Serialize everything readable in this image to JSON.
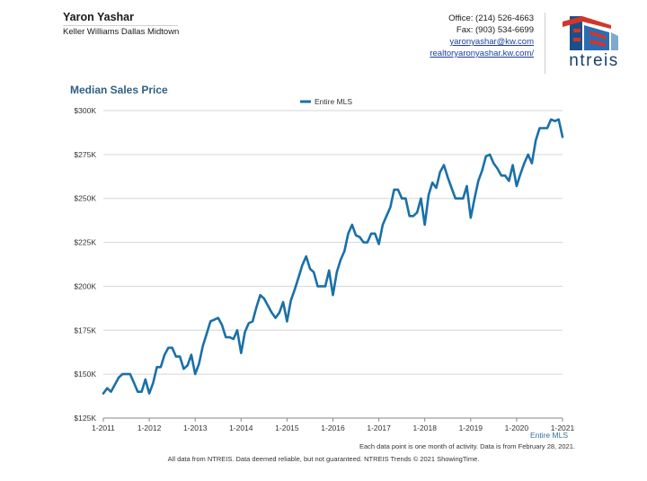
{
  "agent": {
    "name": "Yaron Yashar",
    "company": "Keller Williams Dallas Midtown"
  },
  "contact": {
    "office": "Office: (214) 526-4663",
    "fax": "Fax: (903) 534-6699",
    "email": "yaronyashar@kw.com",
    "website": "realtoryaronyashar.kw.com/"
  },
  "logo": {
    "text": "ntreis",
    "colors": {
      "red": "#d2362a",
      "blue": "#1b4f8a"
    }
  },
  "chart_title": "Median Sales Price",
  "chart_data": {
    "type": "line",
    "title": "Median Sales Price",
    "series": [
      {
        "name": "Entire MLS",
        "color": "#1a70a8",
        "start": "2011-01",
        "values": [
          139,
          142,
          140,
          144,
          148,
          150,
          150,
          150,
          145,
          140,
          140,
          147,
          139,
          145,
          154,
          154,
          161,
          165,
          165,
          160,
          160,
          153,
          155,
          161,
          150,
          156,
          166,
          173,
          180,
          181,
          182,
          178,
          171,
          171,
          170,
          175,
          162,
          174,
          179,
          180,
          188,
          195,
          193,
          189,
          185,
          182,
          185,
          191,
          180,
          192,
          198,
          205,
          212,
          217,
          210,
          208,
          200,
          200,
          200,
          209,
          195,
          208,
          215,
          220,
          230,
          235,
          229,
          228,
          225,
          225,
          230,
          230,
          224,
          235,
          240,
          245,
          255,
          255,
          250,
          250,
          240,
          240,
          242,
          250,
          235,
          252,
          259,
          256,
          265,
          269,
          262,
          256,
          250,
          250,
          250,
          257,
          239,
          250,
          260,
          266,
          274,
          275,
          270,
          267,
          263,
          263,
          260,
          269,
          257,
          264,
          270,
          275,
          270,
          283,
          290,
          290,
          290,
          295,
          294,
          295,
          285
        ]
      }
    ],
    "y_axis": {
      "min": 125,
      "max": 300,
      "ticks": [
        125,
        150,
        175,
        200,
        225,
        250,
        275,
        300
      ],
      "tick_labels": [
        "$125K",
        "$150K",
        "$175K",
        "$200K",
        "$225K",
        "$250K",
        "$275K",
        "$300K"
      ],
      "unit": "thousands of dollars"
    },
    "x_axis": {
      "tick_labels": [
        "1-2011",
        "1-2012",
        "1-2013",
        "1-2014",
        "1-2015",
        "1-2016",
        "1-2017",
        "1-2018",
        "1-2019",
        "1-2020",
        "1-2021"
      ],
      "label": "Entire MLS"
    },
    "grid": "horizontal",
    "legend": "top-center",
    "note": "Each data point is one month of activity. Data is from February 28, 2021.",
    "footer": "All data from NTREIS. Data deemed reliable, but not guaranteed. NTREIS Trends © 2021 ShowingTime."
  }
}
